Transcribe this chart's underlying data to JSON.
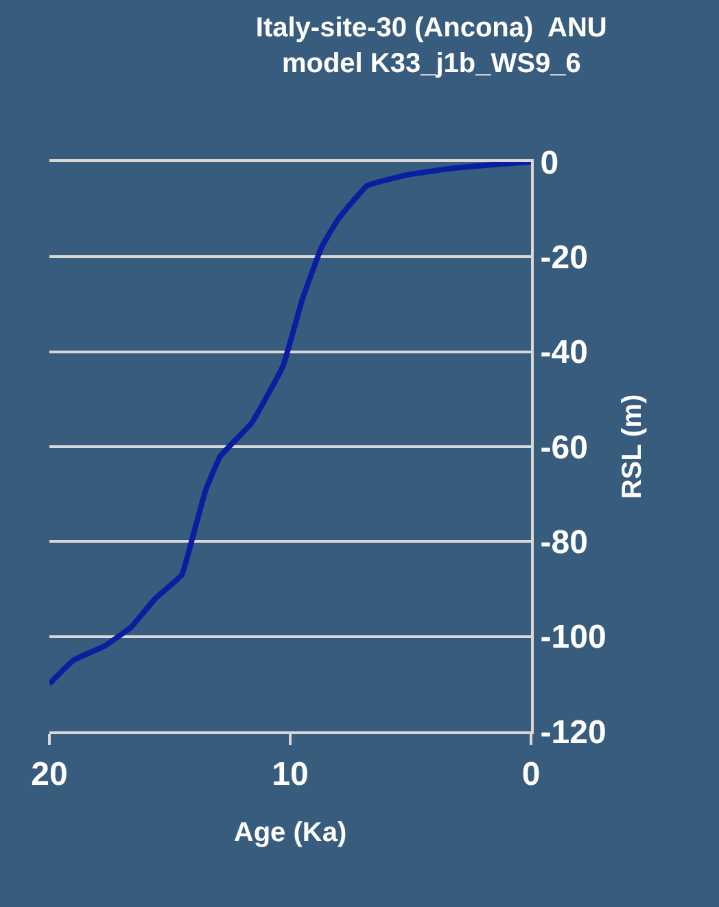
{
  "chart_data": {
    "type": "line",
    "title": "Italy-site-30 (Ancona)  ANU",
    "subtitle": "model K33_j1b_WS9_6",
    "xlabel": "Age (Ka)",
    "ylabel": "RSL (m)",
    "x": [
      20,
      19.0,
      17.7,
      16.6,
      15.6,
      14.5,
      14.1,
      13.5,
      12.9,
      11.6,
      10.3,
      9.5,
      8.7,
      8.0,
      6.8,
      5.1,
      3.2,
      1.4,
      0
    ],
    "series": [
      {
        "color": "#0a1fa0",
        "values": [
          -110,
          -105,
          -102,
          -98,
          -92,
          -87,
          -80,
          -69,
          -62,
          -55,
          -43,
          -29,
          -18,
          -12,
          -5,
          -2.7,
          -1.3,
          -0.5,
          0
        ]
      }
    ],
    "xlim": [
      20,
      0
    ],
    "xticks": [
      20,
      10,
      0
    ],
    "ylim": [
      -120,
      0
    ],
    "yticks": [
      -120,
      -100,
      -80,
      -60,
      -40,
      -20,
      0
    ],
    "grid": "y"
  }
}
